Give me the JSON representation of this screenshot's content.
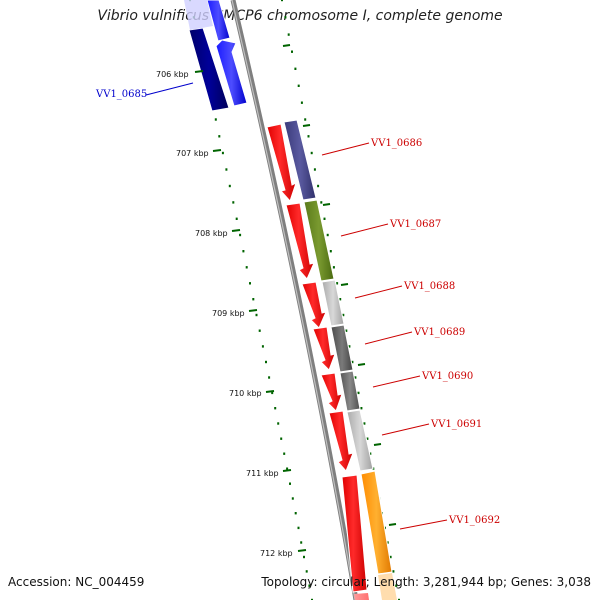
{
  "title": "Vibrio vulnificus CMCP6 chromosome I, complete genome",
  "footer": {
    "accession": "Accession: NC_004459",
    "summary": "Topology: circular; Length: 3,281,944 bp; Genes: 3,038"
  },
  "scale_labels": [
    "706 kbp",
    "707 kbp",
    "708 kbp",
    "709 kbp",
    "710 kbp",
    "711 kbp",
    "712 kbp"
  ],
  "genes": [
    {
      "label": "VV1_0685",
      "color": "#0000cc"
    },
    {
      "label": "VV1_0686",
      "color": "#cc0000"
    },
    {
      "label": "VV1_0687",
      "color": "#cc0000"
    },
    {
      "label": "VV1_0688",
      "color": "#cc0000"
    },
    {
      "label": "VV1_0689",
      "color": "#cc0000"
    },
    {
      "label": "VV1_0690",
      "color": "#cc0000"
    },
    {
      "label": "VV1_0691",
      "color": "#cc0000"
    },
    {
      "label": "VV1_0692",
      "color": "#cc0000"
    }
  ],
  "colors": {
    "forward_strand": "#ff0000",
    "reverse_strand": "#0000ff",
    "reverse_dark": "#000080",
    "backbone": "#808080",
    "scale_tick": "#006400"
  }
}
